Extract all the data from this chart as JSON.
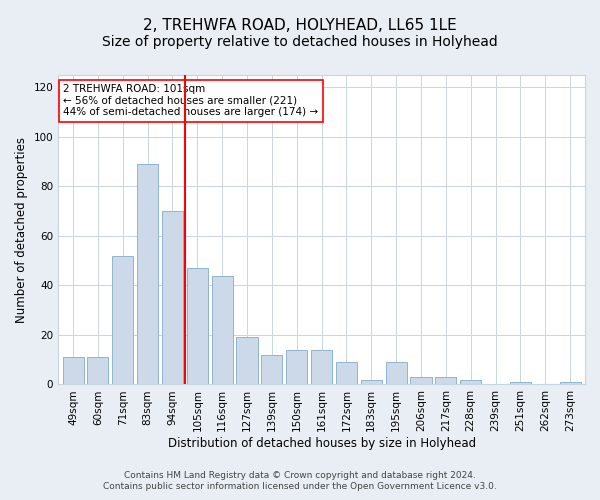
{
  "title": "2, TREHWFA ROAD, HOLYHEAD, LL65 1LE",
  "subtitle": "Size of property relative to detached houses in Holyhead",
  "xlabel": "Distribution of detached houses by size in Holyhead",
  "ylabel": "Number of detached properties",
  "categories": [
    "49sqm",
    "60sqm",
    "71sqm",
    "83sqm",
    "94sqm",
    "105sqm",
    "116sqm",
    "127sqm",
    "139sqm",
    "150sqm",
    "161sqm",
    "172sqm",
    "183sqm",
    "195sqm",
    "206sqm",
    "217sqm",
    "228sqm",
    "239sqm",
    "251sqm",
    "262sqm",
    "273sqm"
  ],
  "values": [
    11,
    11,
    52,
    89,
    70,
    47,
    44,
    19,
    12,
    14,
    14,
    9,
    2,
    9,
    3,
    3,
    2,
    0,
    1,
    0,
    1
  ],
  "bar_color": "#ccd9e8",
  "bar_edge_color": "#90b4d0",
  "vline_x": 4.5,
  "vline_color": "red",
  "annotation_text": "2 TREHWFA ROAD: 101sqm\n← 56% of detached houses are smaller (221)\n44% of semi-detached houses are larger (174) →",
  "annotation_box_color": "white",
  "annotation_box_edge": "red",
  "ylim": [
    0,
    125
  ],
  "yticks": [
    0,
    20,
    40,
    60,
    80,
    100,
    120
  ],
  "footer_line1": "Contains HM Land Registry data © Crown copyright and database right 2024.",
  "footer_line2": "Contains public sector information licensed under the Open Government Licence v3.0.",
  "title_fontsize": 11,
  "subtitle_fontsize": 10,
  "axis_label_fontsize": 8.5,
  "tick_fontsize": 7.5,
  "annotation_fontsize": 7.5,
  "footer_fontsize": 6.5,
  "fig_bg_color": "#e8eef4",
  "plot_bg_color": "white",
  "grid_color": "#c8d4de"
}
